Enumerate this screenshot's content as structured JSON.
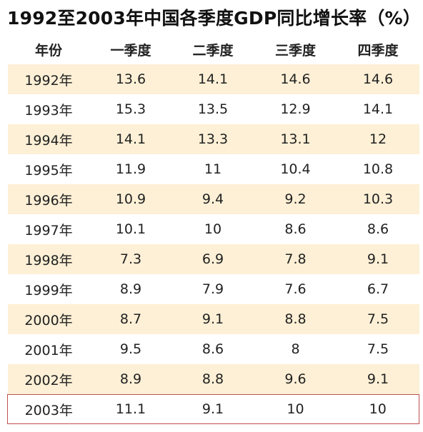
{
  "chart_data": {
    "type": "table",
    "title": "1992至2003年中国各季度GDP同比增长率（%）",
    "headers": [
      "年份",
      "一季度",
      "二季度",
      "三季度",
      "四季度"
    ],
    "rows": [
      {
        "year": "1992年",
        "values": [
          "13.6",
          "14.1",
          "14.6",
          "14.6"
        ]
      },
      {
        "year": "1993年",
        "values": [
          "15.3",
          "13.5",
          "12.9",
          "14.1"
        ]
      },
      {
        "year": "1994年",
        "values": [
          "14.1",
          "13.3",
          "13.1",
          "12"
        ]
      },
      {
        "year": "1995年",
        "values": [
          "11.9",
          "11",
          "10.4",
          "10.8"
        ]
      },
      {
        "year": "1996年",
        "values": [
          "10.9",
          "9.4",
          "9.2",
          "10.3"
        ]
      },
      {
        "year": "1997年",
        "values": [
          "10.1",
          "10",
          "8.6",
          "8.6"
        ]
      },
      {
        "year": "1998年",
        "values": [
          "7.3",
          "6.9",
          "7.8",
          "9.1"
        ]
      },
      {
        "year": "1999年",
        "values": [
          "8.9",
          "7.9",
          "7.6",
          "6.7"
        ]
      },
      {
        "year": "2000年",
        "values": [
          "8.7",
          "9.1",
          "8.8",
          "7.5"
        ]
      },
      {
        "year": "2001年",
        "values": [
          "9.5",
          "8.6",
          "8",
          "7.5"
        ]
      },
      {
        "year": "2002年",
        "values": [
          "8.9",
          "8.8",
          "9.6",
          "9.1"
        ]
      },
      {
        "year": "2003年",
        "values": [
          "11.1",
          "9.1",
          "10",
          "10"
        ]
      }
    ],
    "highlighted_row": "2003年",
    "colors": {
      "row_shade": "#fdf0d6",
      "highlight_border": "#c0504d"
    }
  }
}
